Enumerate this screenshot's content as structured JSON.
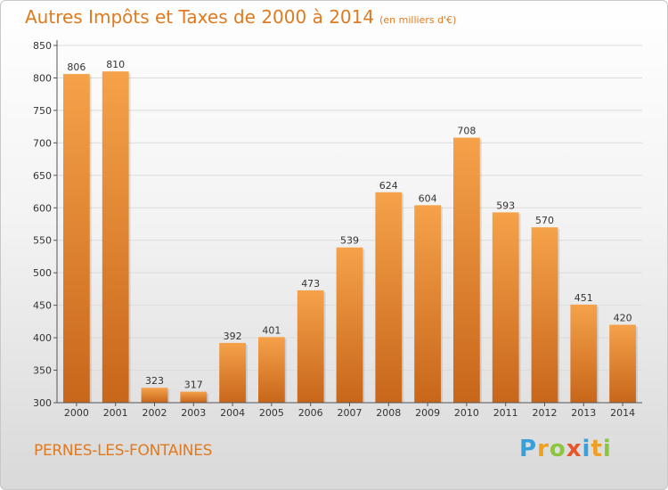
{
  "title": "Autres Impôts et Taxes de 2000 à 2014",
  "subtitle": "(en milliers d'€)",
  "commune": "PERNES-LES-FONTAINES",
  "logo": {
    "letters": [
      "P",
      "r",
      "o",
      "x",
      "i",
      "t",
      "i"
    ],
    "colors": [
      "#3aa0dc",
      "#f0a020",
      "#8cc63e",
      "#e8552a",
      "#3aa0dc",
      "#f0a020",
      "#8cc63e"
    ]
  },
  "colors": {
    "bar_top": "#f5a24a",
    "bar_bottom": "#c8661a",
    "accent": "#e07a1f"
  },
  "chart_data": {
    "type": "bar",
    "categories": [
      "2000",
      "2001",
      "2002",
      "2003",
      "2004",
      "2005",
      "2006",
      "2007",
      "2008",
      "2009",
      "2010",
      "2011",
      "2012",
      "2013",
      "2014"
    ],
    "values": [
      806,
      810,
      323,
      317,
      392,
      401,
      473,
      539,
      624,
      604,
      708,
      593,
      570,
      451,
      420
    ],
    "value_labels": [
      "806",
      "810",
      "323",
      "317",
      "392",
      "401",
      "473",
      "539",
      "624",
      "604",
      "708",
      "593",
      "570",
      "451",
      "420"
    ],
    "yticks": [
      "300",
      "350",
      "400",
      "450",
      "500",
      "550",
      "600",
      "650",
      "700",
      "750",
      "800",
      "850"
    ],
    "ylim": [
      300,
      850
    ],
    "grid": true
  }
}
